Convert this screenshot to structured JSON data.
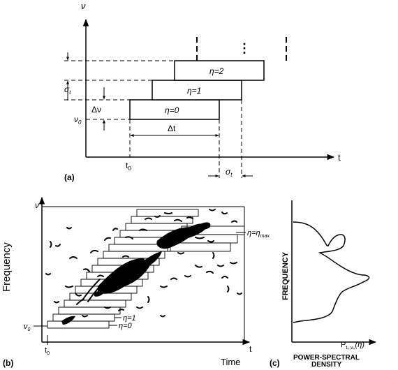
{
  "panel_a": {
    "panel_label": "(a)",
    "y_axis_symbol": "ν",
    "x_axis_symbol": "t",
    "t0_label": "t",
    "t0_sub": "0",
    "nu0_label": "ν",
    "nu0_sub": "0",
    "delta_nu_label": "Δν",
    "delta_t_label": "Δt",
    "sigma_t_label": "σ",
    "sigma_t_sub": "t",
    "sigma_t_bottom_label": "σ",
    "sigma_t_bottom_sub": "t",
    "continuation_dots": "⋮",
    "bands": [
      {
        "label": "η=0"
      },
      {
        "label": "η=1"
      },
      {
        "label": "η=2"
      }
    ]
  },
  "panel_b": {
    "panel_label": "(b)",
    "y_axis_title": "Frequency",
    "x_axis_title": "Time",
    "y_axis_symbol": "ν",
    "x_axis_symbol": "t",
    "t0_label": "t",
    "t0_sub": "0",
    "nu0_label": "ν",
    "nu0_sub": "0",
    "eta0_label": "η=0",
    "eta1_label": "η=1",
    "eta_max_label": "η=η",
    "eta_max_sub": "max"
  },
  "panel_c": {
    "panel_label": "(c)",
    "y_axis_title": "FREQUENCY",
    "x_axis_title_line1": "POWER-SPECTRAL",
    "x_axis_title_line2": "DENSITY",
    "p_label": "P",
    "p_sub": "t₀,ν₀",
    "p_arg": "(η)"
  }
}
